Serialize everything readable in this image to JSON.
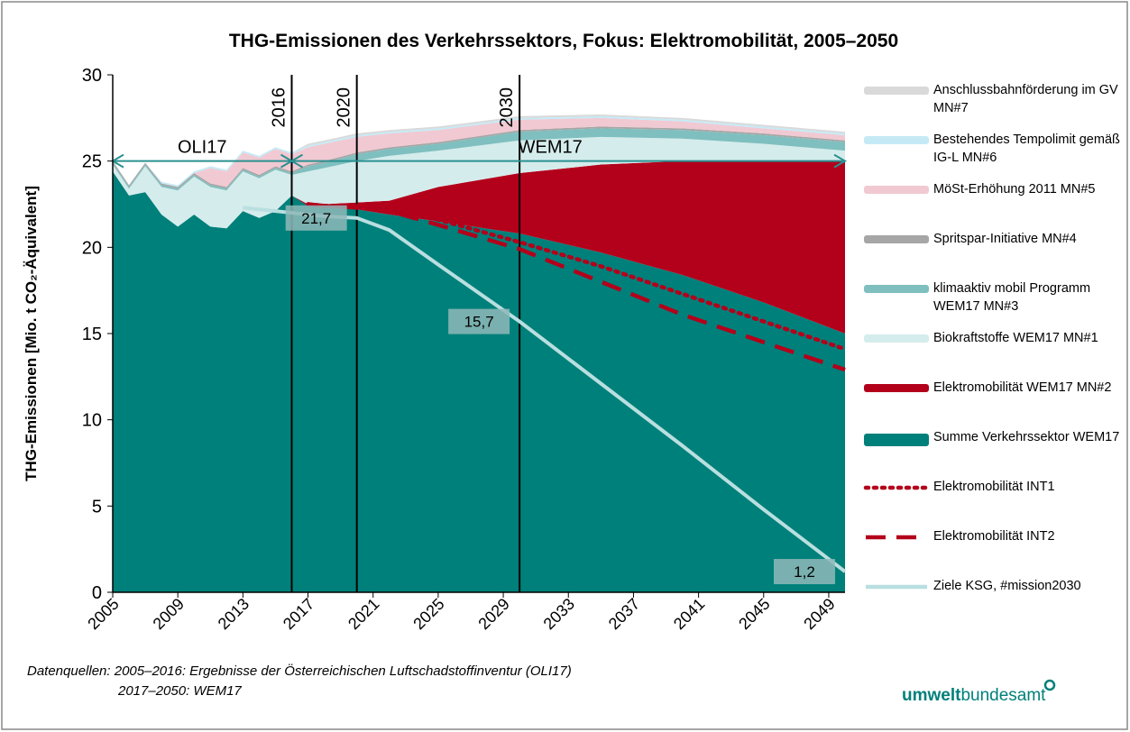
{
  "chart_data": {
    "type": "area",
    "title": "THG-Emissionen des Verkehrssektors, Fokus: Elektromobilität, 2005–2050",
    "y_label": "THG-Emissionen [Mio. t CO₂-Äquivalent]",
    "x": [
      2005,
      2006,
      2007,
      2008,
      2009,
      2010,
      2011,
      2012,
      2013,
      2014,
      2015,
      2016,
      2017,
      2018,
      2020,
      2022,
      2025,
      2030,
      2035,
      2040,
      2045,
      2050
    ],
    "xlim": [
      2005,
      2050
    ],
    "xticks": [
      2005,
      2009,
      2013,
      2017,
      2021,
      2025,
      2029,
      2033,
      2037,
      2041,
      2045,
      2049
    ],
    "ylim": [
      0,
      30
    ],
    "yticks": [
      0,
      5,
      10,
      15,
      20,
      25,
      30
    ],
    "series": [
      {
        "name": "Anschlussbahnförderung im GV MN#7",
        "kind": "area",
        "color": "#d9d9d9",
        "values": [
          0,
          0,
          0,
          0,
          0,
          0,
          0,
          0,
          0,
          0,
          0,
          0,
          0.1,
          0.1,
          0.1,
          0.1,
          0.1,
          0.1,
          0.1,
          0.1,
          0.1,
          0.1
        ]
      },
      {
        "name": "Bestehendes Tempolimit gemäß IG-L MN#6",
        "kind": "area",
        "color": "#c5eaf6",
        "values": [
          0,
          0,
          0,
          0.1,
          0.1,
          0.1,
          0.1,
          0.1,
          0.1,
          0.1,
          0.1,
          0.1,
          0.1,
          0.1,
          0.1,
          0.1,
          0.1,
          0.1,
          0.1,
          0.1,
          0.1,
          0.1
        ]
      },
      {
        "name": "MöSt-Erhöhung 2011 MN#5",
        "kind": "area",
        "color": "#f1c9d2",
        "values": [
          0,
          0,
          0,
          0,
          0,
          0,
          0.9,
          0.9,
          0.9,
          1.0,
          1.0,
          1.0,
          1.0,
          1.0,
          0.9,
          0.8,
          0.7,
          0.6,
          0.5,
          0.4,
          0.3,
          0.3
        ]
      },
      {
        "name": "Spritspar-Initiative MN#4",
        "kind": "area",
        "color": "#a6a6a6",
        "values": [
          0.1,
          0.1,
          0.1,
          0.1,
          0.1,
          0.1,
          0.1,
          0.1,
          0.1,
          0.1,
          0.1,
          0.1,
          0.1,
          0.1,
          0.1,
          0.1,
          0.1,
          0.1,
          0.1,
          0.1,
          0.1,
          0.1
        ]
      },
      {
        "name": "klimaaktiv mobil Programm WEM17 MN#3",
        "kind": "area",
        "color": "#7fbfbf",
        "values": [
          0.1,
          0.1,
          0.1,
          0.1,
          0.1,
          0.1,
          0.1,
          0.1,
          0.1,
          0.1,
          0.1,
          0.1,
          0.3,
          0.3,
          0.4,
          0.4,
          0.4,
          0.5,
          0.5,
          0.5,
          0.5,
          0.5
        ]
      },
      {
        "name": "Biokraftstoffe WEM17 MN#1",
        "kind": "area",
        "color": "#d5ecec",
        "values": [
          0.4,
          0.4,
          1.5,
          1.6,
          2.1,
          2.2,
          2.3,
          2.2,
          2.3,
          2.3,
          2.4,
          1.2,
          1.9,
          2.1,
          2.4,
          2.6,
          2.1,
          1.9,
          1.6,
          1.3,
          1.0,
          0.6
        ]
      },
      {
        "name": "Elektromobilität WEM17 MN#2",
        "kind": "area",
        "color": "#b3001b",
        "values": [
          0,
          0,
          0,
          0,
          0,
          0,
          0,
          0,
          0,
          0,
          0,
          0,
          0.1,
          0.2,
          0.4,
          0.8,
          2.0,
          3.5,
          5.1,
          6.6,
          8.2,
          10.0
        ]
      },
      {
        "name": "Summe Verkehrssektor WEM17",
        "kind": "area",
        "color": "#00807a",
        "values": [
          24.4,
          23.0,
          23.2,
          21.9,
          21.2,
          21.9,
          21.2,
          21.1,
          22.1,
          21.7,
          22.1,
          23.0,
          22.4,
          22.3,
          22.2,
          21.9,
          21.5,
          20.8,
          19.7,
          18.4,
          16.8,
          15.0
        ]
      },
      {
        "name": "Elektromobilität INT1",
        "kind": "line",
        "style": "dotted",
        "color": "#b3001b",
        "values": [
          null,
          null,
          null,
          null,
          null,
          null,
          null,
          null,
          null,
          null,
          null,
          null,
          22.5,
          22.4,
          22.4,
          22.3,
          21.6,
          20.3,
          18.9,
          17.3,
          15.7,
          14.1
        ]
      },
      {
        "name": "Elektromobilität INT2",
        "kind": "line",
        "style": "dashed",
        "color": "#b3001b",
        "values": [
          null,
          null,
          null,
          null,
          null,
          null,
          null,
          null,
          null,
          null,
          null,
          null,
          22.5,
          22.4,
          22.3,
          22.1,
          21.3,
          19.9,
          18.0,
          16.1,
          14.5,
          12.9
        ]
      },
      {
        "name": "Ziele KSG, #mission2030",
        "kind": "line",
        "style": "solid",
        "color": "#b9dfe0",
        "values": [
          null,
          null,
          null,
          null,
          null,
          null,
          null,
          null,
          22.3,
          22.2,
          22.1,
          22.0,
          21.9,
          21.8,
          21.7,
          21.0,
          19.0,
          15.7,
          12.1,
          8.5,
          4.8,
          1.2
        ],
        "value_labels": [
          null,
          null,
          null,
          null,
          null,
          null,
          null,
          null,
          null,
          null,
          null,
          null,
          null,
          null,
          "21,7",
          null,
          null,
          "15,7",
          null,
          null,
          null,
          "1,2"
        ]
      }
    ],
    "vlines": [
      {
        "x": 2016,
        "label": "2016"
      },
      {
        "x": 2020,
        "label": "2020"
      },
      {
        "x": 2030,
        "label": "2030"
      }
    ],
    "arrows": [
      {
        "from": 2005,
        "to": 2016,
        "y": 25,
        "label": "OLI17"
      },
      {
        "from": 2016,
        "to": 2050,
        "y": 25,
        "label": "WEM17"
      }
    ],
    "source": [
      "Datenquellen: 2005–2016: Ergebnisse der Österreichischen Luftschadstoffinventur (OLI17)",
      "2017–2050: WEM17"
    ],
    "logo": [
      "umwelt",
      "bundesamt"
    ]
  }
}
